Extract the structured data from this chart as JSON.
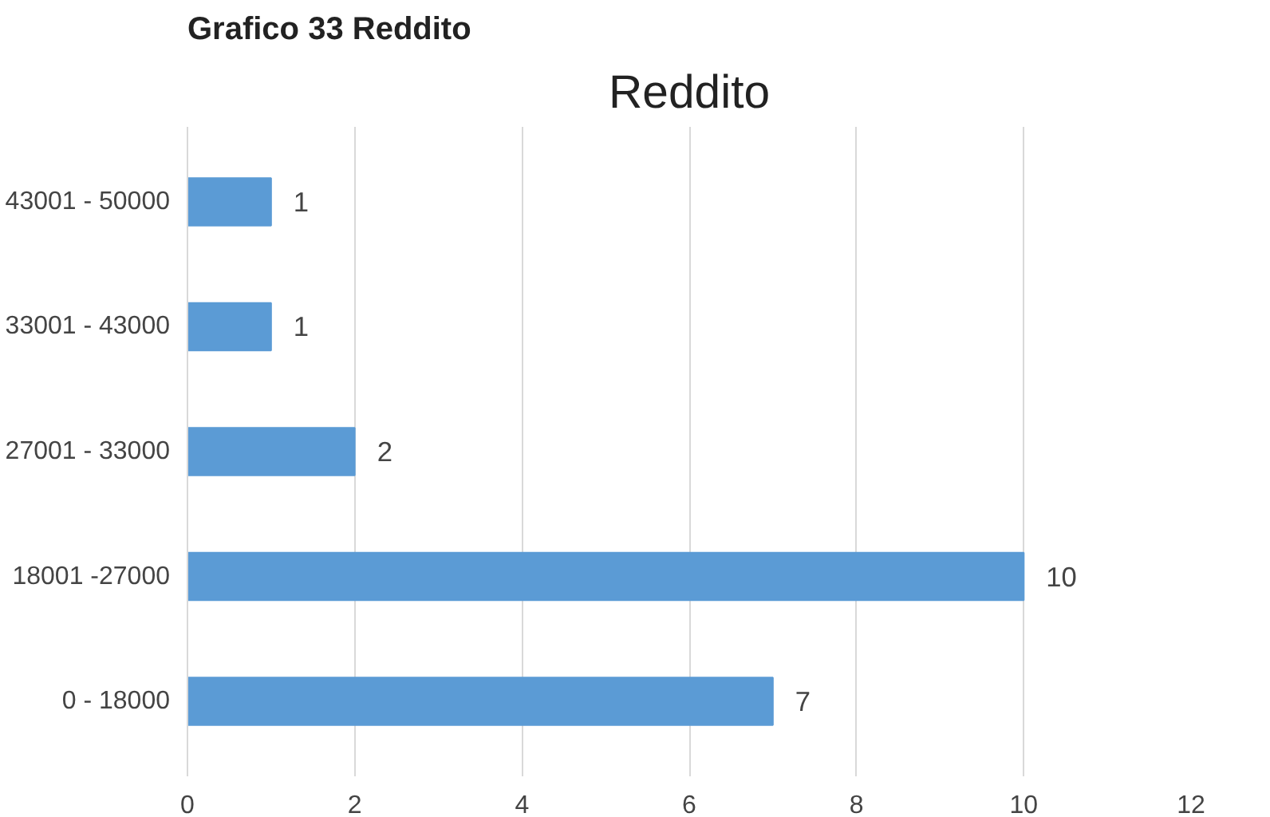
{
  "chart_data": {
    "type": "bar",
    "orientation": "horizontal",
    "title": "Reddito",
    "annotations": [
      "Grafico 33 Reddito"
    ],
    "categories": [
      "43001 - 50000",
      "33001 - 43000",
      "27001 - 33000",
      "18001 -27000",
      "0 - 18000"
    ],
    "values": [
      1,
      1,
      2,
      10,
      7
    ],
    "color": "#5b9bd5",
    "data_labels": true,
    "xlim": [
      0,
      12
    ],
    "xticks": [
      0,
      2,
      4,
      6,
      8,
      10,
      12
    ],
    "grid": "x"
  }
}
